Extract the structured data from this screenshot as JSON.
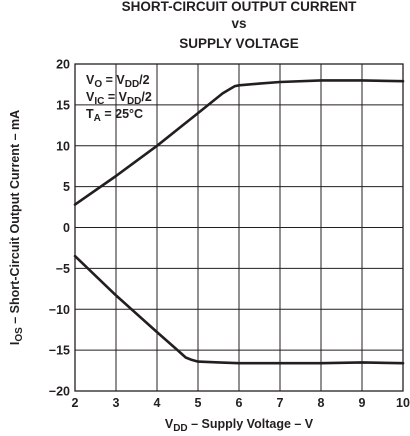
{
  "chart_data": {
    "type": "line",
    "title": [
      "SHORT-CIRCUIT OUTPUT CURRENT",
      "vs",
      "SUPPLY VOLTAGE"
    ],
    "xlabel": {
      "main": "V",
      "sub": "DD",
      "rest": " – Supply Voltage – V"
    },
    "ylabel": {
      "main": "I",
      "sub": "OS",
      "rest": " – Short-Circuit Output Current – mA"
    },
    "xlim": [
      2,
      10
    ],
    "ylim": [
      -20,
      20
    ],
    "xticks": [
      "2",
      "3",
      "4",
      "5",
      "6",
      "7",
      "8",
      "9",
      "10"
    ],
    "yticks": [
      "20",
      "15",
      "10",
      "5",
      "0",
      "−5",
      "−10",
      "−15",
      "−20"
    ],
    "grid": true,
    "annotations": [
      {
        "main": "V",
        "sub": "O",
        "rest": " = V",
        "sub2": "DD",
        "rest2": "/2"
      },
      {
        "main": "V",
        "sub": "IC",
        "rest": " = V",
        "sub2": "DD",
        "rest2": "/2"
      },
      {
        "main": "T",
        "sub": "A",
        "rest": " = 25°C",
        "sub2": "",
        "rest2": ""
      }
    ],
    "series": [
      {
        "x": [
          2.0,
          3.0,
          4.0,
          5.0,
          5.6,
          5.8,
          5.9,
          6.0,
          6.5,
          7.0,
          8.0,
          9.0,
          10.0
        ],
        "values": [
          2.8,
          6.3,
          10.0,
          14.0,
          16.4,
          17.0,
          17.3,
          17.4,
          17.6,
          17.8,
          18.0,
          18.0,
          17.9
        ]
      },
      {
        "x": [
          2.0,
          3.0,
          4.0,
          4.5,
          4.7,
          4.85,
          5.0,
          5.5,
          6.0,
          7.0,
          8.0,
          9.0,
          10.0
        ],
        "values": [
          -3.5,
          -8.3,
          -12.8,
          -15.0,
          -15.9,
          -16.2,
          -16.4,
          -16.5,
          -16.6,
          -16.6,
          -16.6,
          -16.5,
          -16.6
        ]
      }
    ]
  }
}
